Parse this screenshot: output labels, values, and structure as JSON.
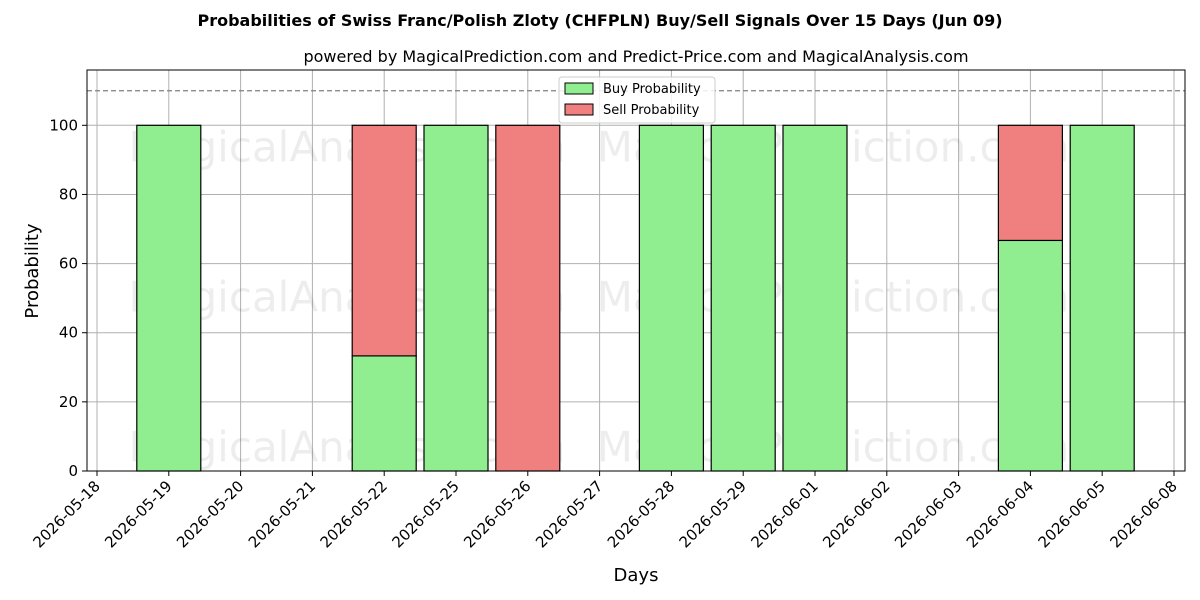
{
  "chart_data": {
    "type": "bar",
    "stacked": true,
    "title": "Probabilities of Swiss Franc/Polish Zloty (CHFPLN) Buy/Sell Signals Over 15 Days (Jun 09)",
    "subtitle": "powered by MagicalPrediction.com and Predict-Price.com and MagicalAnalysis.com",
    "xlabel": "Days",
    "ylabel": "Probability",
    "ylim": [
      0,
      116
    ],
    "yticks": [
      "0",
      "20",
      "40",
      "60",
      "80",
      "100"
    ],
    "reference_line": 110,
    "grid": true,
    "legend_position": "top-center",
    "categories": [
      "2026-05-18",
      "2026-05-19",
      "2026-05-20",
      "2026-05-21",
      "2026-05-22",
      "2026-05-25",
      "2026-05-26",
      "2026-05-27",
      "2026-05-28",
      "2026-05-29",
      "2026-06-01",
      "2026-06-02",
      "2026-06-03",
      "2026-06-04",
      "2026-06-05",
      "2026-06-08"
    ],
    "series": [
      {
        "name": "Buy Probability",
        "color": "#90ee90",
        "values": [
          0,
          100,
          0,
          0,
          33.3,
          100,
          0,
          0,
          100,
          100,
          100,
          0,
          0,
          66.7,
          100,
          0
        ]
      },
      {
        "name": "Sell Probability",
        "color": "#f08080",
        "values": [
          0,
          0,
          0,
          0,
          66.7,
          0,
          100,
          0,
          0,
          0,
          0,
          0,
          0,
          33.3,
          0,
          0
        ]
      }
    ],
    "watermarks": [
      "MagicalAnalysis.com",
      "MagicalPrediction.com",
      "MagicalAnalysis.com",
      "MagicalPrediction.com",
      "MagicalAnalysis.com",
      "MagicalPrediction.com"
    ]
  }
}
